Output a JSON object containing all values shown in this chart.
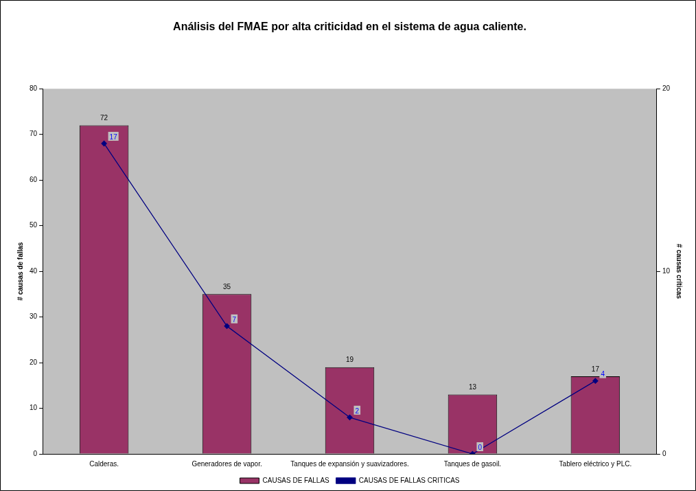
{
  "chart_data": {
    "type": "bar",
    "title": "Análisis del FMAE por alta criticidad en el sistema de agua caliente.",
    "ylabel": "# causas de fallas",
    "y2label": "# causas críticas",
    "categories": [
      "Calderas.",
      "Generadores de vapor.",
      "Tanques de expansión y suavizadores.",
      "Tanques de gasoil.",
      "Tablero eléctrico y PLC."
    ],
    "series": [
      {
        "name": "CAUSAS DE FALLAS",
        "type": "bar",
        "color": "#993366",
        "values": [
          72,
          35,
          19,
          13,
          17
        ]
      },
      {
        "name": "CAUSAS DE FALLAS CRITICAS",
        "type": "line",
        "axis": "y2",
        "color": "#000080",
        "values": [
          17,
          7,
          2,
          0,
          4
        ]
      }
    ],
    "ylim": [
      0,
      80
    ],
    "yticks": [
      0,
      10,
      20,
      30,
      40,
      50,
      60,
      70,
      80
    ],
    "y2lim": [
      0,
      20
    ],
    "y2ticks": [
      0,
      10,
      20
    ],
    "data_labels": true,
    "grid": false,
    "legend": "bottom",
    "marker": "diamond",
    "line_style": "solid"
  }
}
